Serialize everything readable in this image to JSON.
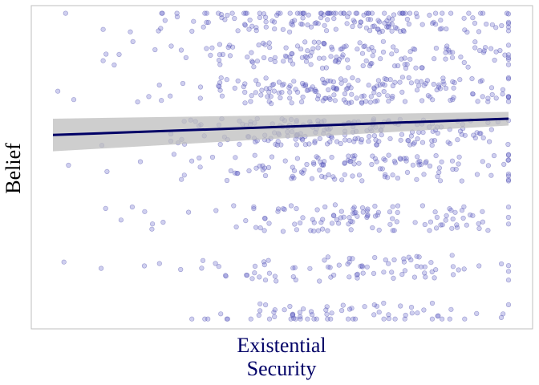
{
  "chart_data": {
    "type": "scatter",
    "title": "",
    "xlabel_lines": [
      "Existential",
      "Security"
    ],
    "ylabel": "Belief",
    "xlim": [
      0,
      1
    ],
    "ylim": [
      0,
      1
    ],
    "grid": false,
    "ticks_visible": false,
    "colors": {
      "points": "#6a6acd",
      "points_stroke": "#3c3ca0",
      "line": "#000066",
      "band": "#bdbdbd",
      "xlabel": "#000066",
      "ylabel": "#000000",
      "frame": "#bfbfbf"
    },
    "point_opacity": 0.32,
    "n_points": 1100,
    "regression": {
      "x": [
        0.0,
        1.0
      ],
      "y": [
        0.61,
        0.665
      ],
      "ci_low": [
        0.555,
        0.642
      ],
      "ci_high": [
        0.665,
        0.688
      ]
    }
  }
}
